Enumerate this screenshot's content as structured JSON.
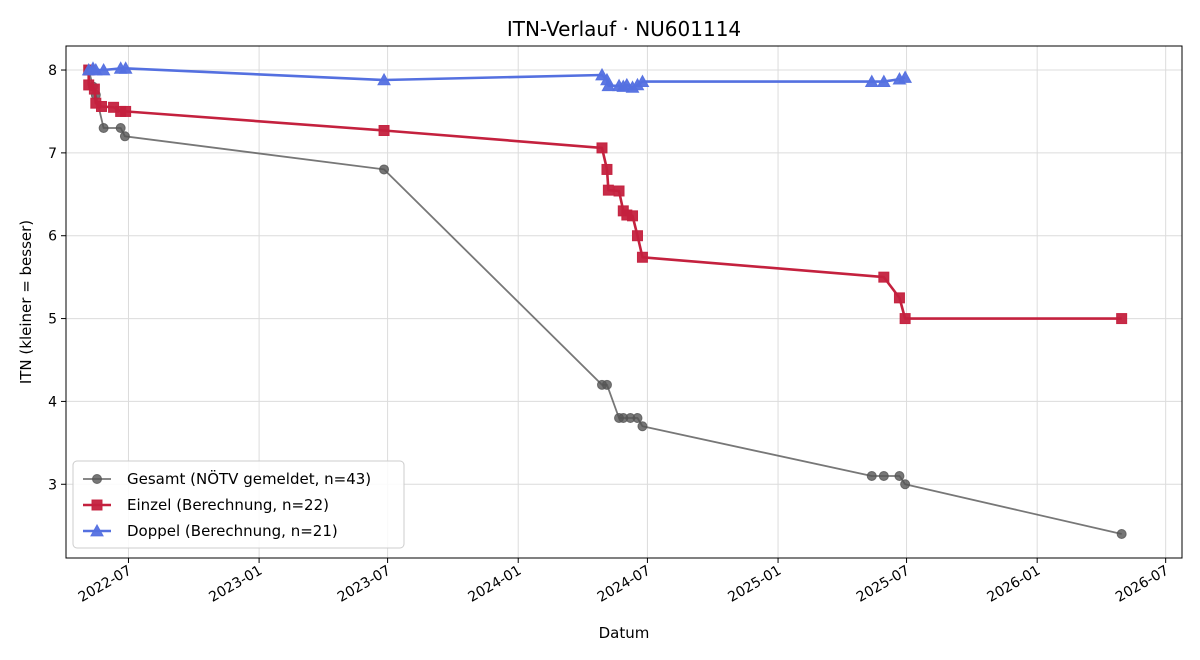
{
  "chart_data": {
    "type": "line",
    "title": "ITN-Verlauf · NU601114",
    "xlabel": "Datum",
    "ylabel": "ITN  (kleiner = besser)",
    "x_ticks": [
      "2022-07",
      "2023-01",
      "2023-07",
      "2024-01",
      "2024-07",
      "2025-01",
      "2025-07",
      "2026-01",
      "2026-07"
    ],
    "y_ticks": [
      3,
      4,
      5,
      6,
      7,
      8
    ],
    "xlim": [
      "2022-04-04",
      "2026-07-24"
    ],
    "ylim": [
      2.11,
      8.29
    ],
    "grid": true,
    "legend_position": "bottom-left",
    "series": [
      {
        "name": "Gesamt (NÖTV gemeldet, n=43)",
        "color": "#555555",
        "marker": "circle",
        "points": [
          {
            "x": "2022-05-06",
            "y": 8.0
          },
          {
            "x": "2022-05-12",
            "y": 7.8
          },
          {
            "x": "2022-05-16",
            "y": 7.7
          },
          {
            "x": "2022-05-27",
            "y": 7.3
          },
          {
            "x": "2022-06-20",
            "y": 7.3
          },
          {
            "x": "2022-06-26",
            "y": 7.2
          },
          {
            "x": "2023-06-26",
            "y": 6.8
          },
          {
            "x": "2024-04-28",
            "y": 4.2
          },
          {
            "x": "2024-05-05",
            "y": 4.2
          },
          {
            "x": "2024-05-22",
            "y": 3.8
          },
          {
            "x": "2024-05-28",
            "y": 3.8
          },
          {
            "x": "2024-06-07",
            "y": 3.8
          },
          {
            "x": "2024-06-17",
            "y": 3.8
          },
          {
            "x": "2024-06-24",
            "y": 3.7
          },
          {
            "x": "2025-05-13",
            "y": 3.1
          },
          {
            "x": "2025-05-30",
            "y": 3.1
          },
          {
            "x": "2025-06-21",
            "y": 3.1
          },
          {
            "x": "2025-06-29",
            "y": 3.0
          },
          {
            "x": "2026-04-30",
            "y": 2.4
          }
        ]
      },
      {
        "name": "Einzel (Berechnung, n=22)",
        "color": "#c4213e",
        "marker": "square",
        "points": [
          {
            "x": "2022-05-06",
            "y": 8.0
          },
          {
            "x": "2022-05-06",
            "y": 7.82
          },
          {
            "x": "2022-05-14",
            "y": 7.77
          },
          {
            "x": "2022-05-16",
            "y": 7.6
          },
          {
            "x": "2022-05-24",
            "y": 7.56
          },
          {
            "x": "2022-06-10",
            "y": 7.55
          },
          {
            "x": "2022-06-20",
            "y": 7.5
          },
          {
            "x": "2022-06-27",
            "y": 7.5
          },
          {
            "x": "2023-06-26",
            "y": 7.27
          },
          {
            "x": "2024-04-28",
            "y": 7.06
          },
          {
            "x": "2024-05-05",
            "y": 6.8
          },
          {
            "x": "2024-05-07",
            "y": 6.55
          },
          {
            "x": "2024-05-22",
            "y": 6.54
          },
          {
            "x": "2024-05-28",
            "y": 6.3
          },
          {
            "x": "2024-06-02",
            "y": 6.25
          },
          {
            "x": "2024-06-10",
            "y": 6.24
          },
          {
            "x": "2024-06-17",
            "y": 6.0
          },
          {
            "x": "2024-06-24",
            "y": 5.74
          },
          {
            "x": "2025-05-30",
            "y": 5.5
          },
          {
            "x": "2025-06-21",
            "y": 5.25
          },
          {
            "x": "2025-06-29",
            "y": 5.0
          },
          {
            "x": "2026-04-30",
            "y": 5.0
          }
        ]
      },
      {
        "name": "Doppel (Berechnung, n=21)",
        "color": "#5470e0",
        "marker": "triangle",
        "points": [
          {
            "x": "2022-05-06",
            "y": 8.0
          },
          {
            "x": "2022-05-12",
            "y": 8.02
          },
          {
            "x": "2022-05-16",
            "y": 8.0
          },
          {
            "x": "2022-05-27",
            "y": 8.0
          },
          {
            "x": "2022-06-20",
            "y": 8.02
          },
          {
            "x": "2022-06-27",
            "y": 8.02
          },
          {
            "x": "2023-06-26",
            "y": 7.88
          },
          {
            "x": "2024-04-28",
            "y": 7.94
          },
          {
            "x": "2024-05-05",
            "y": 7.88
          },
          {
            "x": "2024-05-07",
            "y": 7.81
          },
          {
            "x": "2024-05-22",
            "y": 7.81
          },
          {
            "x": "2024-05-28",
            "y": 7.8
          },
          {
            "x": "2024-06-02",
            "y": 7.82
          },
          {
            "x": "2024-06-10",
            "y": 7.79
          },
          {
            "x": "2024-06-17",
            "y": 7.82
          },
          {
            "x": "2024-06-24",
            "y": 7.86
          },
          {
            "x": "2025-05-13",
            "y": 7.86
          },
          {
            "x": "2025-05-30",
            "y": 7.86
          },
          {
            "x": "2025-06-21",
            "y": 7.89
          },
          {
            "x": "2025-06-29",
            "y": 7.91
          }
        ]
      }
    ]
  }
}
